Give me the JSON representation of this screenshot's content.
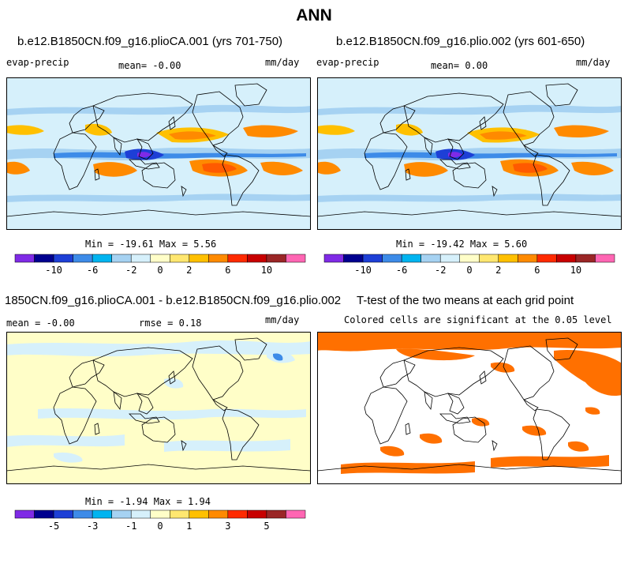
{
  "page": {
    "title": "ANN"
  },
  "panels": [
    {
      "id": "case1",
      "title": "b.e12.B1850CN.f09_g16.plioCA.001 (yrs 701-750)",
      "left_label": "evap-precip",
      "center_label": "mean=  -0.00",
      "right_label": "mm/day",
      "stats": "Min = -19.61 Max =   5.56"
    },
    {
      "id": "case2",
      "title": "b.e12.B1850CN.f09_g16.plio.002 (yrs 601-650)",
      "left_label": "evap-precip",
      "center_label": "mean=   0.00",
      "right_label": "mm/day",
      "stats": "Min = -19.42 Max =   5.60"
    },
    {
      "id": "difference",
      "title": "1850CN.f09_g16.plioCA.001 - b.e12.B1850CN.f09_g16.plio.002",
      "left_label": "mean =  -0.00",
      "center_label": "rmse =   0.18",
      "right_label": "mm/day",
      "stats": "Min = -1.94 Max =   1.94"
    },
    {
      "id": "ttest",
      "title": "T-test of the two means at each grid point",
      "subtitle": "Colored cells are significant at the 0.05 level"
    }
  ],
  "colorbars": {
    "full": {
      "colors": [
        "#7f2ae6",
        "#00008f",
        "#1d3fd6",
        "#3d8be8",
        "#00b4f0",
        "#a6d2f2",
        "#d6f0fb",
        "#fffec8",
        "#ffe770",
        "#ffc000",
        "#ff8a00",
        "#ff2a00",
        "#c80000",
        "#9a2626",
        "#ff66b3"
      ],
      "labels": [
        "-10",
        "-6",
        "-2",
        "0",
        "2",
        "6",
        "10"
      ]
    },
    "diff": {
      "colors": [
        "#7f2ae6",
        "#00008f",
        "#1d3fd6",
        "#3d8be8",
        "#00b4f0",
        "#a6d2f2",
        "#d6f0fb",
        "#fffec8",
        "#ffe770",
        "#ffc000",
        "#ff8a00",
        "#ff2a00",
        "#c80000",
        "#9a2626",
        "#ff66b3"
      ],
      "labels": [
        "-5",
        "-3",
        "-1",
        "0",
        "1",
        "3",
        "5"
      ]
    }
  },
  "map_colors": {
    "ocean_base": "#d6f0fb",
    "ocean_mid": "#a6d2f2",
    "wet": "#3d8be8",
    "very_wet": "#1d3fd6",
    "deep_wet": "#7f2ae6",
    "dry": "#ffc000",
    "very_dry": "#ff8a00",
    "strong_dry": "#ff5a00",
    "diff_pos": "#fffec8",
    "diff_neg": "#d6f0fb",
    "significant": "#ff7000"
  }
}
